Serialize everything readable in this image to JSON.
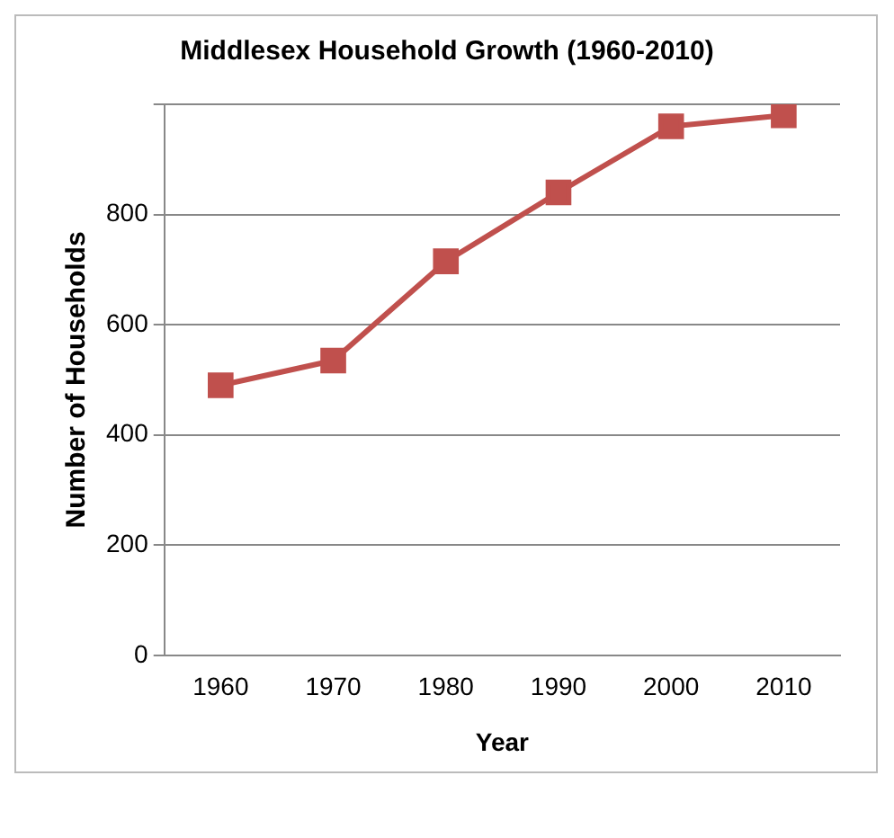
{
  "chart_data": {
    "type": "line",
    "title": "Middlesex Household Growth (1960-2010)",
    "xlabel": "Year",
    "ylabel": "Number of Households",
    "categories": [
      "1960",
      "1970",
      "1980",
      "1990",
      "2000",
      "2010"
    ],
    "series": [
      {
        "color": "#c0504d",
        "values": [
          490,
          535,
          715,
          840,
          960,
          980
        ]
      }
    ],
    "ylim": [
      0,
      1000
    ],
    "yticks": [
      0,
      200,
      400,
      600,
      800,
      {
        "value": 1000,
        "label": null
      }
    ],
    "grid": "y",
    "legend": false,
    "marker": "square",
    "line_style": "solid"
  }
}
